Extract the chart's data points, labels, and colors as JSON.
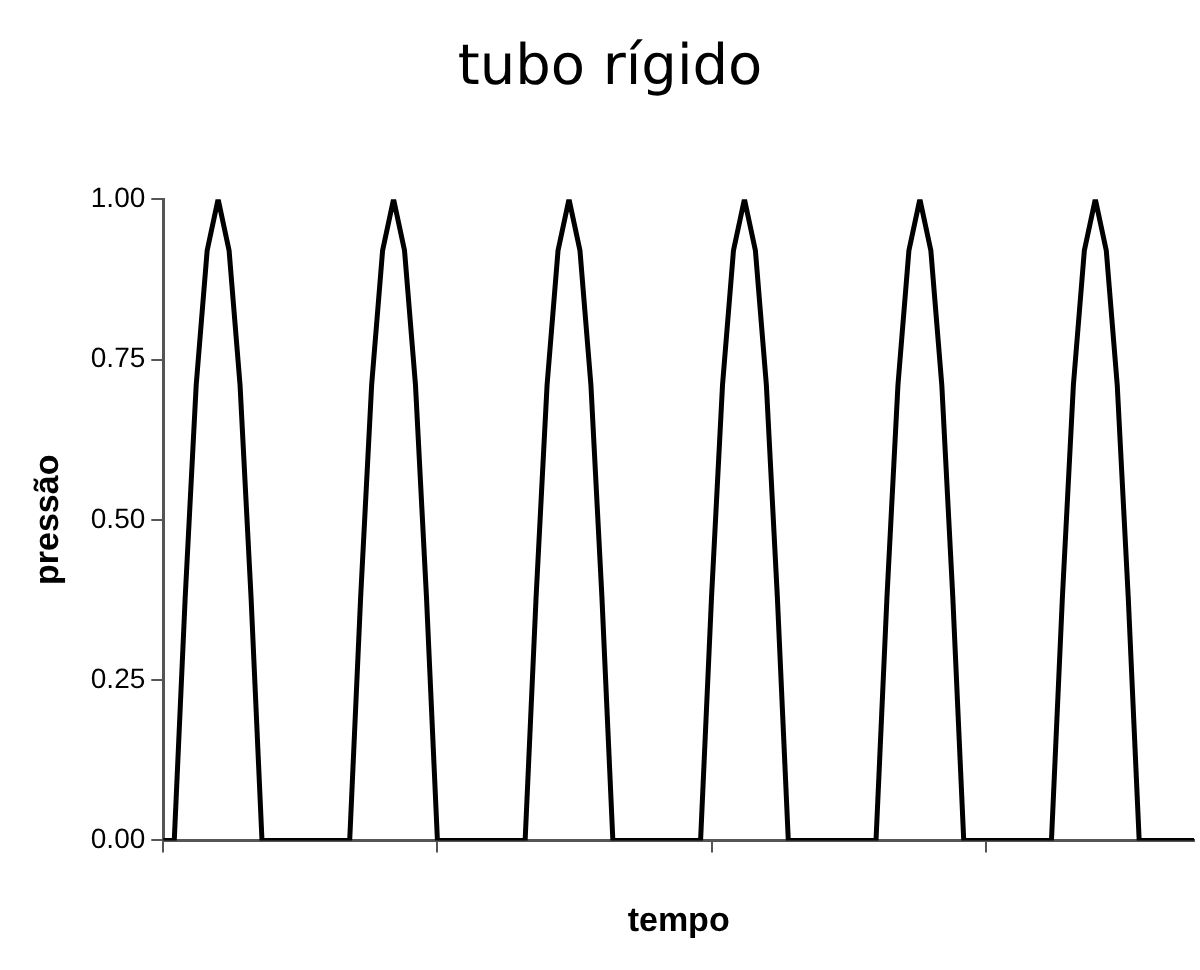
{
  "chart_data": {
    "type": "line",
    "title": "tubo rígido",
    "xlabel": "tempo",
    "ylabel": "pressão",
    "categories": [
      null,
      null,
      null,
      null,
      null,
      null,
      null,
      null,
      null,
      null,
      null,
      null,
      null,
      null,
      null,
      null,
      null,
      null,
      null,
      null,
      null,
      null,
      null,
      null,
      null,
      null,
      null,
      null,
      null,
      null,
      null,
      null,
      null,
      null,
      null,
      null,
      null,
      null,
      null,
      null,
      null,
      null,
      null,
      null,
      null,
      null,
      null,
      null,
      null,
      null,
      null,
      null,
      null,
      null,
      null,
      null,
      null,
      null,
      null,
      null,
      null,
      null,
      null,
      null,
      null,
      null,
      null,
      null,
      null,
      null,
      null,
      null,
      null,
      null,
      null,
      null,
      null,
      null,
      null,
      null,
      null,
      null,
      null,
      null,
      null,
      null,
      null,
      null,
      null,
      null,
      null,
      null,
      null,
      null,
      null
    ],
    "series": [
      {
        "color": "#000000",
        "values": [
          0,
          0,
          0.38,
          0.71,
          0.92,
          1,
          0.92,
          0.71,
          0.38,
          0,
          0,
          0,
          0,
          0,
          0,
          0,
          0,
          0,
          0.38,
          0.71,
          0.92,
          1,
          0.92,
          0.71,
          0.38,
          0,
          0,
          0,
          0,
          0,
          0,
          0,
          0,
          0,
          0.38,
          0.71,
          0.92,
          1,
          0.92,
          0.71,
          0.38,
          0,
          0,
          0,
          0,
          0,
          0,
          0,
          0,
          0,
          0.38,
          0.71,
          0.92,
          1,
          0.92,
          0.71,
          0.38,
          0,
          0,
          0,
          0,
          0,
          0,
          0,
          0,
          0,
          0.38,
          0.71,
          0.92,
          1,
          0.92,
          0.71,
          0.38,
          0,
          0,
          0,
          0,
          0,
          0,
          0,
          0,
          0,
          0.38,
          0.71,
          0.92,
          1,
          0.92,
          0.71,
          0.38,
          0,
          0,
          0,
          0,
          0,
          0
        ]
      }
    ],
    "ylim": [
      0,
      1
    ],
    "yticks": [
      {
        "value": 0,
        "label": "0.00"
      },
      {
        "value": 0.25,
        "label": "0.25"
      },
      {
        "value": 0.5,
        "label": "0.50"
      },
      {
        "value": 0.75,
        "label": "0.75"
      },
      {
        "value": 1,
        "label": "1.00"
      }
    ],
    "grid": false,
    "legend": false,
    "marker": "none",
    "line_style": "solid"
  }
}
